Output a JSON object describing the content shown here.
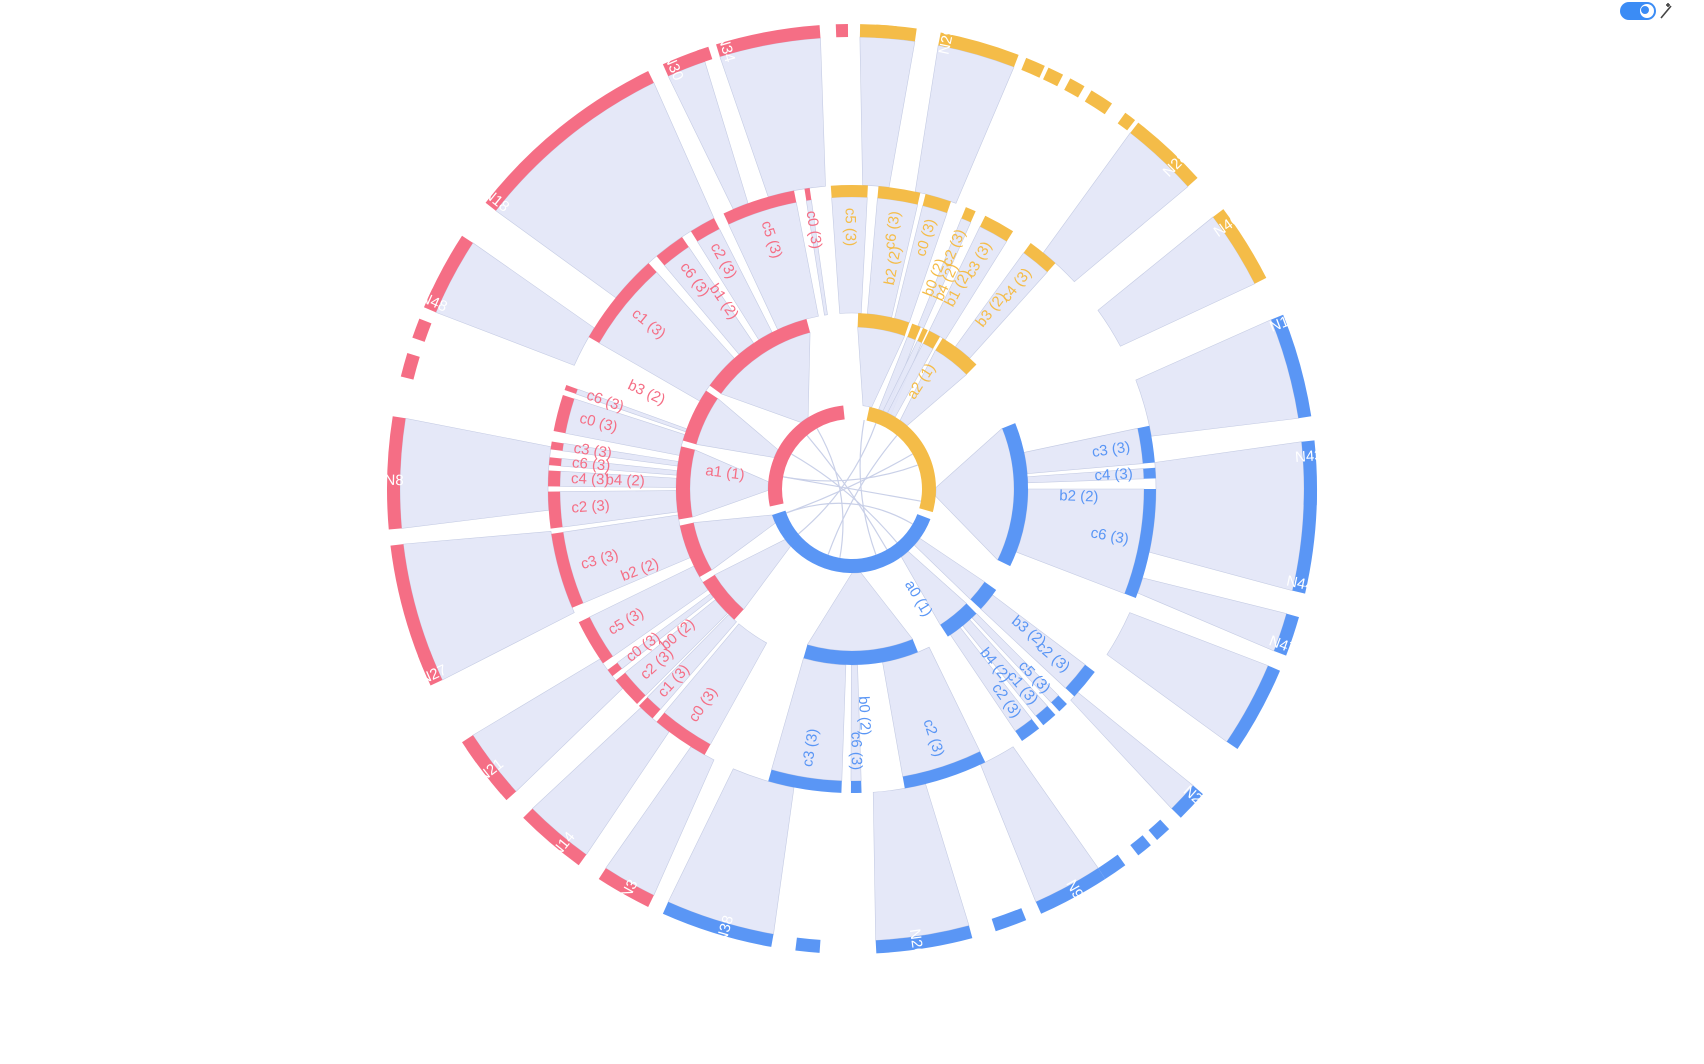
{
  "colors": {
    "red": "#f56e85",
    "orange": "#f4bc48",
    "blue": "#5a96f5",
    "link": "#e2e6f7"
  },
  "toolbar": {
    "theme_toggle_icon": "theme-toggle-icon",
    "magic_icon": "magic-wand-icon"
  },
  "groups": [
    {
      "key": "red",
      "color": "#f56e85",
      "label": "a1 (1)"
    },
    {
      "key": "orange",
      "color": "#f4bc48",
      "label": "a2 (1)"
    },
    {
      "key": "blue",
      "color": "#5a96f5",
      "label": "a0 (1)"
    }
  ],
  "level2": [
    "b1 (2)",
    "b3 (2)",
    "b4 (2)",
    "b2 (2)",
    "b0 (2)",
    "b2 (2)",
    "b0 (2)",
    "b4 (2)",
    "b1 (2)",
    "b3 (2)",
    "b2 (2)",
    "b3 (2)",
    "b4 (2)",
    "b0 (2)"
  ],
  "level3": [
    "c0 (3)",
    "c5 (3)",
    "c2 (3)",
    "c6 (3)",
    "c1 (3)",
    "c6 (3)",
    "c0 (3)",
    "c3 (3)",
    "c6 (3)",
    "c4 (3)",
    "c2 (3)",
    "c3 (3)",
    "c5 (3)",
    "c0 (3)",
    "c2 (3)",
    "c1 (3)",
    "c0 (3)",
    "c5 (3)",
    "c6 (3)",
    "c0 (3)",
    "c2 (3)",
    "c3 (3)",
    "c4 (3)",
    "c3 (3)",
    "c4 (3)",
    "c6 (3)",
    "c2 (3)",
    "c5 (3)",
    "c1 (3)",
    "c2 (3)",
    "c2 (3)",
    "c6 (3)",
    "c3 (3)"
  ],
  "leaves": [
    "N34",
    "N30",
    "N18",
    "N48",
    "N8",
    "N27",
    "N21",
    "N14",
    "N3",
    "N29",
    "N28",
    "N46",
    "N1",
    "N43",
    "N44",
    "N47",
    "N2",
    "N9",
    "N26",
    "N38"
  ]
}
